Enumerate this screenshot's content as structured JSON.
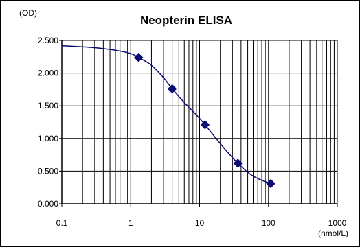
{
  "chart_data": {
    "type": "line",
    "title": "Neopterin ELISA",
    "ylabel": "(OD)",
    "xlabel": "(nmol/L)",
    "x_scale": "log",
    "xlim": [
      0.1,
      1000
    ],
    "ylim": [
      0,
      2.5
    ],
    "grid": true,
    "legend": "none",
    "x_ticks": [
      0.1,
      1,
      10,
      100,
      1000
    ],
    "x_tick_labels": [
      "0.1",
      "1",
      "10",
      "100",
      "1000"
    ],
    "y_ticks": [
      0,
      0.5,
      1,
      1.5,
      2,
      2.5
    ],
    "y_tick_labels": [
      "0.000",
      "0.500",
      "1.000",
      "1.500",
      "2.000",
      "2.500"
    ],
    "series": [
      {
        "type": "scatter",
        "x": [
          1.3,
          4,
          12,
          36,
          108
        ],
        "y": [
          2.24,
          1.76,
          1.21,
          0.62,
          0.31
        ],
        "color": "#0a0a73",
        "marker": "diamond"
      },
      {
        "type": "line",
        "x": [
          0.1,
          0.3,
          0.6,
          1,
          1.3,
          2,
          3,
          4,
          6,
          9,
          12,
          18,
          25,
          36,
          55,
          80,
          108
        ],
        "y": [
          2.42,
          2.39,
          2.35,
          2.3,
          2.24,
          2.12,
          1.93,
          1.76,
          1.55,
          1.36,
          1.21,
          0.98,
          0.8,
          0.62,
          0.45,
          0.36,
          0.31
        ],
        "color": "#0a0a73"
      }
    ]
  }
}
